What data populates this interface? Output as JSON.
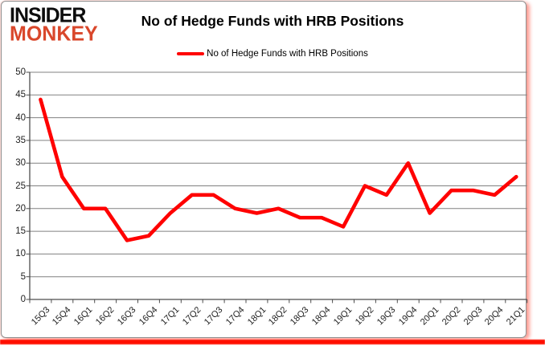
{
  "logo": {
    "line1": "INSIDER",
    "line2": "MONKEY"
  },
  "title": "No of Hedge Funds with HRB Positions",
  "legend": {
    "label": "No of Hedge Funds with HRB Positions"
  },
  "colors": {
    "line": "#FF0000",
    "grid": "#808080",
    "axis": "#4D4D4D",
    "tick_text": "#1F1F1F",
    "logo_accent": "#D9472B",
    "logo_black": "#0D0D0D",
    "frame_glow": "#FF0F00"
  },
  "chart_data": {
    "type": "line",
    "title": "No of Hedge Funds with HRB Positions",
    "categories": [
      "15Q3",
      "15Q4",
      "16Q1",
      "16Q2",
      "16Q3",
      "16Q4",
      "17Q1",
      "17Q2",
      "17Q3",
      "17Q4",
      "18Q1",
      "18Q2",
      "18Q3",
      "18Q4",
      "19Q1",
      "19Q2",
      "19Q3",
      "19Q4",
      "20Q1",
      "20Q2",
      "20Q3",
      "20Q4",
      "21Q1"
    ],
    "series": [
      {
        "name": "No of Hedge Funds with HRB Positions",
        "values": [
          44,
          27,
          20,
          20,
          13,
          14,
          19,
          23,
          23,
          20,
          19,
          20,
          18,
          18,
          16,
          25,
          23,
          30,
          19,
          24,
          24,
          23,
          27
        ]
      }
    ],
    "xlabel": "",
    "ylabel": "",
    "ylim": [
      0,
      50
    ],
    "yticks": [
      0,
      5,
      10,
      15,
      20,
      25,
      30,
      35,
      40,
      45,
      50
    ],
    "grid": true,
    "legend_position": "top-center",
    "x_label_rotation": -45
  }
}
